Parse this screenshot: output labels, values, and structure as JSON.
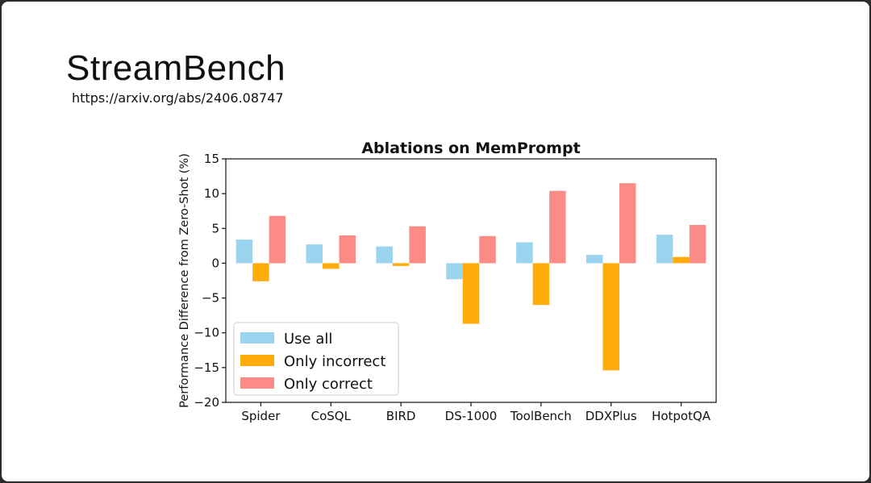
{
  "slide": {
    "title": "StreamBench",
    "link": "https://arxiv.org/abs/2406.08747"
  },
  "chart_data": {
    "type": "bar",
    "title": "Ablations on MemPrompt",
    "xlabel": "",
    "ylabel": "Performance Difference from Zero-Shot (%)",
    "ylim": [
      -20,
      15
    ],
    "yticks": [
      15,
      10,
      5,
      0,
      -5,
      -10,
      -15,
      -20
    ],
    "ytick_labels": [
      "15",
      "10",
      "5",
      "0",
      "−5",
      "−10",
      "−15",
      "−20"
    ],
    "grid": false,
    "legend_position": "bottom-left",
    "categories": [
      "Spider",
      "CoSQL",
      "BIRD",
      "DS-1000",
      "ToolBench",
      "DDXPlus",
      "HotpotQA"
    ],
    "series": [
      {
        "name": "Use all",
        "color": "#9bd4ef",
        "values": [
          3.4,
          2.7,
          2.4,
          -2.3,
          3.0,
          1.2,
          4.1
        ]
      },
      {
        "name": "Only incorrect",
        "color": "#ffac0a",
        "values": [
          -2.6,
          -0.8,
          -0.4,
          -8.7,
          -6.0,
          -15.4,
          0.9
        ]
      },
      {
        "name": "Only correct",
        "color": "#fd8b85",
        "values": [
          6.8,
          4.0,
          5.3,
          3.9,
          10.4,
          11.5,
          5.5
        ]
      }
    ]
  }
}
